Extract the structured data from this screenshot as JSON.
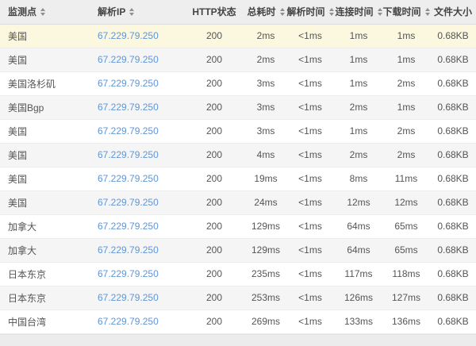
{
  "colors": {
    "header_bg": "#eeeeee",
    "row_highlight_bg": "#fbf8df",
    "row_stripe_bg": "#f5f5f5",
    "link_blue": "#5f96d8"
  },
  "table": {
    "columns": [
      {
        "key": "node",
        "label": "监测点",
        "sortable": true
      },
      {
        "key": "ip",
        "label": "解析IP",
        "sortable": true
      },
      {
        "key": "status",
        "label": "HTTP状态",
        "sortable": false
      },
      {
        "key": "total",
        "label": "总耗时",
        "sortable": true
      },
      {
        "key": "dns",
        "label": "解析时间",
        "sortable": true
      },
      {
        "key": "connect",
        "label": "连接时间",
        "sortable": true
      },
      {
        "key": "download",
        "label": "下载时间",
        "sortable": true
      },
      {
        "key": "size",
        "label": "文件大小",
        "sortable": false
      }
    ],
    "rows": [
      {
        "node": "美国",
        "ip": "67.229.79.250",
        "status": "200",
        "total": "2ms",
        "dns": "<1ms",
        "connect": "1ms",
        "download": "1ms",
        "size": "0.68KB",
        "highlight": true
      },
      {
        "node": "美国",
        "ip": "67.229.79.250",
        "status": "200",
        "total": "2ms",
        "dns": "<1ms",
        "connect": "1ms",
        "download": "1ms",
        "size": "0.68KB",
        "highlight": false
      },
      {
        "node": "美国洛杉矶",
        "ip": "67.229.79.250",
        "status": "200",
        "total": "3ms",
        "dns": "<1ms",
        "connect": "1ms",
        "download": "2ms",
        "size": "0.68KB",
        "highlight": false
      },
      {
        "node": "美国Bgp",
        "ip": "67.229.79.250",
        "status": "200",
        "total": "3ms",
        "dns": "<1ms",
        "connect": "2ms",
        "download": "1ms",
        "size": "0.68KB",
        "highlight": false
      },
      {
        "node": "美国",
        "ip": "67.229.79.250",
        "status": "200",
        "total": "3ms",
        "dns": "<1ms",
        "connect": "1ms",
        "download": "2ms",
        "size": "0.68KB",
        "highlight": false
      },
      {
        "node": "美国",
        "ip": "67.229.79.250",
        "status": "200",
        "total": "4ms",
        "dns": "<1ms",
        "connect": "2ms",
        "download": "2ms",
        "size": "0.68KB",
        "highlight": false
      },
      {
        "node": "美国",
        "ip": "67.229.79.250",
        "status": "200",
        "total": "19ms",
        "dns": "<1ms",
        "connect": "8ms",
        "download": "11ms",
        "size": "0.68KB",
        "highlight": false
      },
      {
        "node": "美国",
        "ip": "67.229.79.250",
        "status": "200",
        "total": "24ms",
        "dns": "<1ms",
        "connect": "12ms",
        "download": "12ms",
        "size": "0.68KB",
        "highlight": false
      },
      {
        "node": "加拿大",
        "ip": "67.229.79.250",
        "status": "200",
        "total": "129ms",
        "dns": "<1ms",
        "connect": "64ms",
        "download": "65ms",
        "size": "0.68KB",
        "highlight": false
      },
      {
        "node": "加拿大",
        "ip": "67.229.79.250",
        "status": "200",
        "total": "129ms",
        "dns": "<1ms",
        "connect": "64ms",
        "download": "65ms",
        "size": "0.68KB",
        "highlight": false
      },
      {
        "node": "日本东京",
        "ip": "67.229.79.250",
        "status": "200",
        "total": "235ms",
        "dns": "<1ms",
        "connect": "117ms",
        "download": "118ms",
        "size": "0.68KB",
        "highlight": false
      },
      {
        "node": "日本东京",
        "ip": "67.229.79.250",
        "status": "200",
        "total": "253ms",
        "dns": "<1ms",
        "connect": "126ms",
        "download": "127ms",
        "size": "0.68KB",
        "highlight": false
      },
      {
        "node": "中国台湾",
        "ip": "67.229.79.250",
        "status": "200",
        "total": "269ms",
        "dns": "<1ms",
        "connect": "133ms",
        "download": "136ms",
        "size": "0.68KB",
        "highlight": false
      }
    ]
  }
}
